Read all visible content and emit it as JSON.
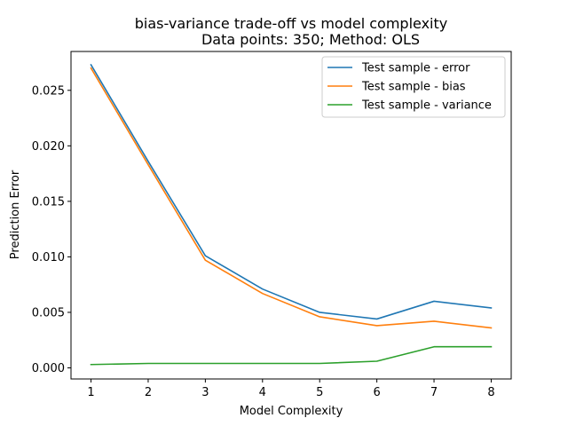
{
  "chart_data": {
    "type": "line",
    "title": "bias-variance trade-off vs model complexity",
    "subtitle": "Data points: 350; Method: OLS",
    "xlabel": "Model Complexity",
    "ylabel": "Prediction Error",
    "x": [
      1,
      2,
      3,
      4,
      5,
      6,
      7,
      8
    ],
    "xlim": [
      0.65,
      8.35
    ],
    "ylim": [
      -0.001,
      0.0285
    ],
    "xticks": [
      "1",
      "2",
      "3",
      "4",
      "5",
      "6",
      "7",
      "8"
    ],
    "yticks": [
      "0.000",
      "0.005",
      "0.010",
      "0.015",
      "0.020",
      "0.025"
    ],
    "grid": false,
    "legend_position": "top-right",
    "series": [
      {
        "name": "Test sample - error",
        "color": "#1f77b4",
        "values": [
          0.0273,
          0.0186,
          0.0101,
          0.0071,
          0.005,
          0.0044,
          0.006,
          0.0054
        ]
      },
      {
        "name": "Test sample - bias",
        "color": "#ff7f0e",
        "values": [
          0.027,
          0.0183,
          0.0097,
          0.0067,
          0.0046,
          0.0038,
          0.0042,
          0.0036
        ]
      },
      {
        "name": "Test sample - variance",
        "color": "#2ca02c",
        "values": [
          0.0003,
          0.0004,
          0.0004,
          0.0004,
          0.0004,
          0.0006,
          0.0019,
          0.0019
        ]
      }
    ]
  }
}
